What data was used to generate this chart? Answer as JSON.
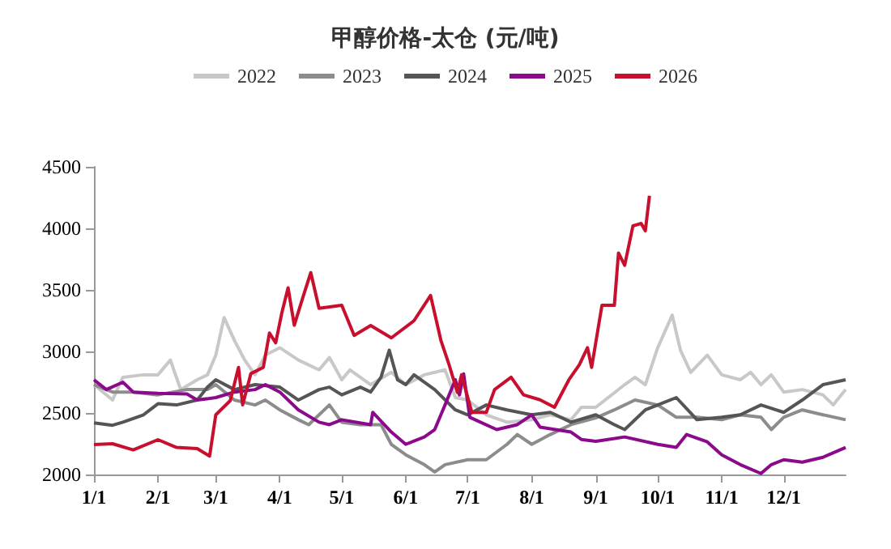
{
  "chart_data": {
    "type": "line",
    "title": "甲醇价格-太仓 (元/吨)",
    "legend": "top",
    "grid": false,
    "marker": "none",
    "line_style": "solid",
    "xlim": [
      "--01-01",
      "--12-31"
    ],
    "xticks": [
      {
        "value": "--01-01",
        "label": "1/1"
      },
      {
        "value": "--02-01",
        "label": "2/1"
      },
      {
        "value": "--03-01",
        "label": "3/1"
      },
      {
        "value": "--04-01",
        "label": "4/1"
      },
      {
        "value": "--05-01",
        "label": "5/1"
      },
      {
        "value": "--06-01",
        "label": "6/1"
      },
      {
        "value": "--07-01",
        "label": "7/1"
      },
      {
        "value": "--08-01",
        "label": "8/1"
      },
      {
        "value": "--09-01",
        "label": "9/1"
      },
      {
        "value": "--10-01",
        "label": "10/1"
      },
      {
        "value": "--11-01",
        "label": "11/1"
      },
      {
        "value": "--12-01",
        "label": "12/1"
      }
    ],
    "ylim": [
      2000,
      4500
    ],
    "yticks": [
      2000,
      2500,
      3000,
      3500,
      4000,
      4500
    ],
    "series": [
      {
        "name": "2022",
        "color": "#c8c8c8",
        "x": [
          "--01-01",
          "--01-10",
          "--01-15",
          "--01-25",
          "--02-01",
          "--02-07",
          "--02-12",
          "--02-20",
          "--02-25",
          "--03-01",
          "--03-05",
          "--03-10",
          "--03-15",
          "--03-20",
          "--03-25",
          "--04-01",
          "--04-10",
          "--04-20",
          "--04-25",
          "--05-01",
          "--05-05",
          "--05-15",
          "--05-25",
          "--06-01",
          "--06-10",
          "--06-20",
          "--06-25",
          "--07-01",
          "--07-10",
          "--07-20",
          "--08-01",
          "--08-10",
          "--08-20",
          "--08-25",
          "--09-01",
          "--09-15",
          "--09-20",
          "--09-25",
          "--10-01",
          "--10-08",
          "--10-12",
          "--10-17",
          "--10-25",
          "--11-01",
          "--11-10",
          "--11-15",
          "--11-20",
          "--11-25",
          "--12-01",
          "--12-10",
          "--12-20",
          "--12-25",
          "--12-31"
        ],
        "values": [
          2730,
          2605,
          2790,
          2810,
          2810,
          2930,
          2690,
          2770,
          2810,
          2970,
          3275,
          3090,
          2930,
          2810,
          2970,
          3030,
          2930,
          2850,
          2950,
          2770,
          2850,
          2730,
          2830,
          2730,
          2810,
          2850,
          2625,
          2605,
          2485,
          2425,
          2445,
          2485,
          2445,
          2546,
          2546,
          2730,
          2790,
          2730,
          3030,
          3295,
          3010,
          2830,
          2970,
          2810,
          2770,
          2830,
          2730,
          2810,
          2670,
          2690,
          2647,
          2565,
          2690
        ]
      },
      {
        "name": "2023",
        "color": "#8c8c8c",
        "x": [
          "--01-01",
          "--01-10",
          "--01-20",
          "--02-01",
          "--02-15",
          "--02-25",
          "--03-01",
          "--03-10",
          "--03-20",
          "--03-25",
          "--04-01",
          "--04-10",
          "--04-15",
          "--04-20",
          "--04-25",
          "--05-01",
          "--05-10",
          "--05-20",
          "--05-25",
          "--06-01",
          "--06-10",
          "--06-15",
          "--06-20",
          "--07-01",
          "--07-10",
          "--07-20",
          "--07-25",
          "--08-01",
          "--08-10",
          "--08-20",
          "--09-01",
          "--09-10",
          "--09-20",
          "--10-01",
          "--10-10",
          "--10-20",
          "--11-01",
          "--11-10",
          "--11-20",
          "--11-25",
          "--12-01",
          "--12-10",
          "--12-20",
          "--12-31"
        ],
        "values": [
          2730,
          2670,
          2670,
          2647,
          2690,
          2690,
          2730,
          2605,
          2565,
          2605,
          2525,
          2445,
          2405,
          2485,
          2565,
          2425,
          2405,
          2405,
          2245,
          2160,
          2080,
          2020,
          2080,
          2120,
          2120,
          2245,
          2325,
          2245,
          2325,
          2405,
          2460,
          2525,
          2605,
          2565,
          2465,
          2465,
          2445,
          2485,
          2465,
          2365,
          2465,
          2525,
          2485,
          2445
        ]
      },
      {
        "name": "2024",
        "color": "#555555",
        "x": [
          "--01-01",
          "--01-10",
          "--01-15",
          "--01-25",
          "--02-01",
          "--02-10",
          "--02-20",
          "--02-25",
          "--03-01",
          "--03-10",
          "--03-20",
          "--04-01",
          "--04-10",
          "--04-20",
          "--04-25",
          "--05-01",
          "--05-10",
          "--05-15",
          "--05-20",
          "--05-24",
          "--05-28",
          "--06-01",
          "--06-05",
          "--06-15",
          "--06-25",
          "--07-01",
          "--07-10",
          "--07-20",
          "--08-01",
          "--08-10",
          "--08-20",
          "--09-01",
          "--09-10",
          "--09-15",
          "--09-25",
          "--10-01",
          "--10-10",
          "--10-20",
          "--11-01",
          "--11-10",
          "--11-20",
          "--12-01",
          "--12-10",
          "--12-20",
          "--12-31"
        ],
        "values": [
          2420,
          2400,
          2425,
          2485,
          2575,
          2565,
          2605,
          2710,
          2770,
          2690,
          2730,
          2710,
          2605,
          2690,
          2710,
          2647,
          2710,
          2670,
          2790,
          3010,
          2770,
          2730,
          2810,
          2690,
          2525,
          2485,
          2565,
          2525,
          2485,
          2505,
          2425,
          2485,
          2405,
          2365,
          2525,
          2565,
          2625,
          2445,
          2465,
          2485,
          2565,
          2505,
          2605,
          2730,
          2770
        ]
      },
      {
        "name": "2025",
        "color": "#8b0a8b",
        "x": [
          "--01-01",
          "--01-07",
          "--01-15",
          "--01-20",
          "--02-01",
          "--02-15",
          "--02-20",
          "--03-01",
          "--03-10",
          "--03-20",
          "--03-25",
          "--04-01",
          "--04-10",
          "--04-20",
          "--04-25",
          "--05-01",
          "--05-15",
          "--05-16",
          "--05-25",
          "--06-01",
          "--06-10",
          "--06-15",
          "--06-20",
          "--06-25",
          "--06-27",
          "--06-29",
          "--07-02",
          "--07-15",
          "--07-25",
          "--08-01",
          "--08-05",
          "--08-20",
          "--08-25",
          "--09-01",
          "--09-15",
          "--10-01",
          "--10-10",
          "--10-15",
          "--10-25",
          "--11-01",
          "--11-10",
          "--11-20",
          "--11-25",
          "--12-01",
          "--12-10",
          "--12-20",
          "--12-31"
        ],
        "values": [
          2770,
          2690,
          2750,
          2670,
          2660,
          2655,
          2605,
          2625,
          2670,
          2690,
          2730,
          2670,
          2525,
          2425,
          2405,
          2445,
          2405,
          2505,
          2345,
          2245,
          2305,
          2365,
          2565,
          2770,
          2647,
          2817,
          2465,
          2365,
          2405,
          2485,
          2385,
          2345,
          2285,
          2270,
          2305,
          2245,
          2220,
          2325,
          2265,
          2160,
          2080,
          2008,
          2080,
          2120,
          2100,
          2140,
          2220
        ]
      },
      {
        "name": "2026",
        "color": "#c8102e",
        "x": [
          "--01-01",
          "--01-10",
          "--01-20",
          "--02-01",
          "--02-10",
          "--02-20",
          "--02-26",
          "--03-01",
          "--03-08",
          "--03-12",
          "--03-14",
          "--03-18",
          "--03-24",
          "--03-27",
          "--03-30",
          "--04-02",
          "--04-05",
          "--04-08",
          "--04-12",
          "--04-16",
          "--04-20",
          "--05-01",
          "--05-07",
          "--05-15",
          "--05-25",
          "--06-05",
          "--06-13",
          "--06-18",
          "--06-22",
          "--06-26",
          "--06-28",
          "--07-03",
          "--07-10",
          "--07-14",
          "--07-22",
          "--07-28",
          "--08-05",
          "--08-12",
          "--08-19",
          "--08-24",
          "--08-28",
          "--08-30",
          "--09-04",
          "--09-10",
          "--09-12",
          "--09-15",
          "--09-19",
          "--09-23",
          "--09-25",
          "--09-27"
        ],
        "values": [
          2243,
          2250,
          2200,
          2283,
          2220,
          2210,
          2150,
          2485,
          2600,
          2870,
          2566,
          2820,
          2870,
          3150,
          3070,
          3315,
          3517,
          3213,
          3430,
          3640,
          3350,
          3375,
          3130,
          3210,
          3110,
          3250,
          3455,
          3090,
          2890,
          2667,
          2810,
          2505,
          2505,
          2690,
          2790,
          2647,
          2607,
          2546,
          2770,
          2890,
          3030,
          2870,
          3375,
          3375,
          3800,
          3700,
          4020,
          4040,
          3980,
          4265
        ]
      }
    ]
  }
}
